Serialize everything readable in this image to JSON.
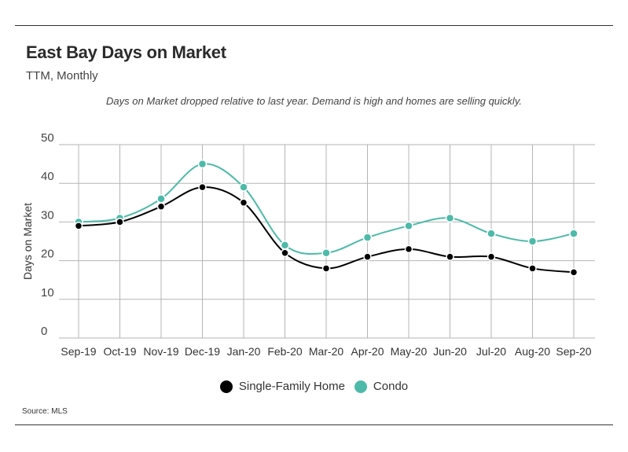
{
  "header": {
    "title": "East Bay Days on Market",
    "subtitle": "TTM, Monthly",
    "annotation": "Days on Market dropped relative to last year. Demand is high and homes are selling quickly."
  },
  "footer": {
    "source": "Source:  MLS"
  },
  "colors": {
    "single_family": "#000000",
    "condo": "#4dbaa9",
    "grid": "#b5b5b5"
  },
  "chart_data": {
    "type": "line",
    "title": "East Bay Days on Market",
    "subtitle": "TTM, Monthly",
    "ylabel": "Days on Market",
    "xlabel": "",
    "ylim": [
      0,
      50
    ],
    "yticks": [
      0,
      10,
      20,
      30,
      40,
      50
    ],
    "grid": true,
    "legend_placement": "bottom-center",
    "categories": [
      "Sep-19",
      "Oct-19",
      "Nov-19",
      "Dec-19",
      "Jan-20",
      "Feb-20",
      "Mar-20",
      "Apr-20",
      "May-20",
      "Jun-20",
      "Jul-20",
      "Aug-20",
      "Sep-20"
    ],
    "series": [
      {
        "name": "Single-Family Home",
        "color": "#000000",
        "values": [
          29,
          30,
          34,
          39,
          35,
          22,
          18,
          21,
          23,
          21,
          21,
          18,
          17
        ]
      },
      {
        "name": "Condo",
        "color": "#4dbaa9",
        "values": [
          30,
          31,
          36,
          45,
          39,
          24,
          22,
          26,
          29,
          31,
          27,
          25,
          27
        ]
      }
    ]
  }
}
